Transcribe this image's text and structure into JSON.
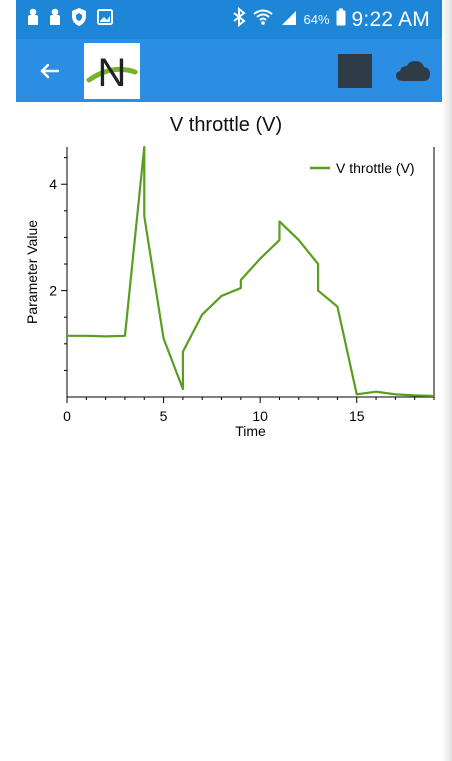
{
  "status_bar": {
    "icons_left": [
      "person-icon",
      "person-icon",
      "shield-icon",
      "image-icon"
    ],
    "icons_right": [
      "bluetooth-icon",
      "wifi-icon",
      "signal-icon",
      "battery-icon"
    ],
    "battery_percent": "64%",
    "time": "9:22 AM"
  },
  "app_bar": {
    "background": "#2b8ee3",
    "logo_letter": "N"
  },
  "chart_data": {
    "type": "line",
    "title": "V throttle (V)",
    "xlabel": "Time",
    "ylabel": "Parameter Value",
    "xlim": [
      0,
      19
    ],
    "ylim": [
      0,
      4.7
    ],
    "x_ticks": [
      0,
      5,
      10,
      15
    ],
    "y_ticks": [
      2,
      4
    ],
    "x_tick_labels": [
      "0",
      "5",
      "10",
      "15"
    ],
    "y_tick_labels": [
      "2",
      "4"
    ],
    "legend_position": "top-right",
    "grid": false,
    "color": "#5a9e1f",
    "series": [
      {
        "name": "V throttle (V)",
        "x": [
          0,
          1,
          2,
          3,
          4,
          4.0,
          5,
          6,
          6.0,
          7,
          8,
          9,
          9.0,
          10,
          11,
          11.0,
          12,
          13,
          13.0,
          14,
          15,
          15.0,
          16,
          17,
          18,
          19
        ],
        "y": [
          1.15,
          1.15,
          1.14,
          1.15,
          4.7,
          3.4,
          1.1,
          0.15,
          0.85,
          1.55,
          1.9,
          2.05,
          2.2,
          2.6,
          2.95,
          3.3,
          2.95,
          2.5,
          2.0,
          1.7,
          0.05,
          0.05,
          0.1,
          0.05,
          0.03,
          0.02
        ]
      }
    ]
  }
}
